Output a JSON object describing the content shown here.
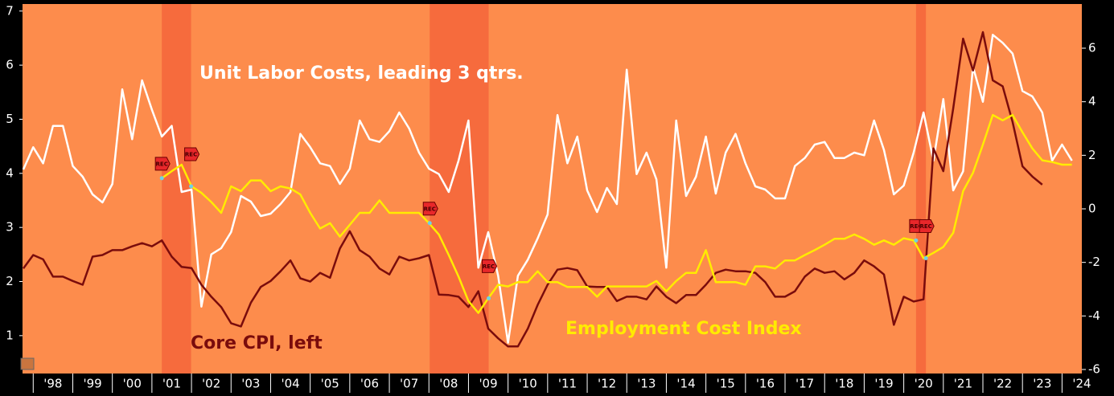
{
  "chart_data": {
    "type": "line",
    "x": [
      1997.75,
      1998,
      1998.25,
      1998.5,
      1998.75,
      1999,
      1999.25,
      1999.5,
      1999.75,
      2000,
      2000.25,
      2000.5,
      2000.75,
      2001,
      2001.25,
      2001.5,
      2001.75,
      2002,
      2002.25,
      2002.5,
      2002.75,
      2003,
      2003.25,
      2003.5,
      2003.75,
      2004,
      2004.25,
      2004.5,
      2004.75,
      2005,
      2005.25,
      2005.5,
      2005.75,
      2006,
      2006.25,
      2006.5,
      2006.75,
      2007,
      2007.25,
      2007.5,
      2007.75,
      2008,
      2008.25,
      2008.5,
      2008.75,
      2009,
      2009.25,
      2009.5,
      2009.75,
      2010,
      2010.25,
      2010.5,
      2010.75,
      2011,
      2011.25,
      2011.5,
      2011.75,
      2012,
      2012.25,
      2012.5,
      2012.75,
      2013,
      2013.25,
      2013.5,
      2013.75,
      2014,
      2014.25,
      2014.5,
      2014.75,
      2015,
      2015.25,
      2015.5,
      2015.75,
      2016,
      2016.25,
      2016.5,
      2016.75,
      2017,
      2017.25,
      2017.5,
      2017.75,
      2018,
      2018.25,
      2018.5,
      2018.75,
      2019,
      2019.25,
      2019.5,
      2019.75,
      2020,
      2020.25,
      2020.5,
      2020.75,
      2021,
      2021.25,
      2021.5,
      2021.75,
      2022,
      2022.25,
      2022.5,
      2022.75,
      2023,
      2023.25,
      2023.5,
      2023.75,
      2024,
      2024.25
    ],
    "series": [
      {
        "name": "Unit Labor Costs, leading 3 qtrs.",
        "color": "#ffffff",
        "axis": "y2",
        "values": [
          1.47,
          2.3,
          1.7,
          3.1,
          3.1,
          1.6,
          1.2,
          0.54,
          0.24,
          0.93,
          4.46,
          2.6,
          4.8,
          3.7,
          2.7,
          3.1,
          0.63,
          0.72,
          -3.65,
          -1.7,
          -1.47,
          -0.87,
          0.48,
          0.27,
          -0.27,
          -0.18,
          0.18,
          0.63,
          2.8,
          2.3,
          1.7,
          1.6,
          0.93,
          1.5,
          3.3,
          2.6,
          2.5,
          2.9,
          3.6,
          3.0,
          2.1,
          1.5,
          1.3,
          0.63,
          1.8,
          3.3,
          -2.2,
          -0.87,
          -2.5,
          -5.0,
          -2.5,
          -1.9,
          -1.1,
          -0.21,
          3.5,
          1.7,
          2.7,
          0.69,
          -0.12,
          0.78,
          0.18,
          5.2,
          1.3,
          2.1,
          1.1,
          -2.2,
          3.3,
          0.48,
          1.2,
          2.7,
          0.57,
          2.1,
          2.8,
          1.7,
          0.84,
          0.72,
          0.39,
          0.39,
          1.6,
          1.9,
          2.4,
          2.5,
          1.9,
          1.9,
          2.1,
          2.0,
          3.3,
          2.2,
          0.54,
          0.87,
          2.1,
          3.6,
          1.8,
          4.1,
          0.69,
          1.4,
          5.3,
          4.0,
          6.5,
          6.2,
          5.8,
          4.4,
          4.2,
          3.6,
          1.8,
          2.4,
          1.8
        ]
      },
      {
        "name": "Core CPI, left",
        "color": "#7a0c0c",
        "axis": "y",
        "values": [
          2.24,
          2.49,
          2.41,
          2.09,
          2.09,
          2.01,
          1.94,
          2.46,
          2.49,
          2.58,
          2.58,
          2.65,
          2.71,
          2.65,
          2.76,
          2.46,
          2.27,
          2.25,
          1.94,
          1.72,
          1.53,
          1.23,
          1.17,
          1.61,
          1.9,
          2.01,
          2.19,
          2.39,
          2.06,
          2.0,
          2.16,
          2.07,
          2.61,
          2.93,
          2.58,
          2.46,
          2.24,
          2.13,
          2.46,
          2.39,
          2.43,
          2.49,
          1.76,
          1.75,
          1.72,
          1.53,
          1.82,
          1.13,
          0.95,
          0.8,
          0.8,
          1.13,
          1.57,
          1.94,
          2.22,
          2.25,
          2.21,
          1.91,
          1.9,
          1.9,
          1.64,
          1.72,
          1.72,
          1.67,
          1.91,
          1.72,
          1.6,
          1.75,
          1.75,
          1.94,
          2.16,
          2.22,
          2.19,
          2.19,
          2.16,
          1.99,
          1.72,
          1.72,
          1.82,
          2.09,
          2.24,
          2.16,
          2.19,
          2.04,
          2.16,
          2.39,
          2.28,
          2.13,
          1.2,
          1.72,
          1.63,
          1.67,
          4.46,
          4.04,
          5.2,
          6.49,
          5.9,
          6.61,
          5.72,
          5.61,
          4.95,
          4.13,
          3.94,
          3.79,
          null,
          null,
          null
        ]
      },
      {
        "name": "Employment Cost Index",
        "color": "#ffeb00",
        "axis": "y",
        "values": [
          null,
          null,
          null,
          null,
          null,
          null,
          null,
          null,
          null,
          null,
          null,
          null,
          null,
          null,
          3.91,
          4.04,
          4.16,
          3.76,
          3.64,
          3.47,
          3.27,
          3.76,
          3.67,
          3.87,
          3.87,
          3.67,
          3.76,
          3.72,
          3.61,
          3.27,
          2.98,
          3.08,
          2.83,
          3.05,
          3.27,
          3.27,
          3.5,
          3.27,
          3.27,
          3.27,
          3.27,
          3.08,
          2.87,
          2.49,
          2.09,
          1.64,
          1.42,
          1.69,
          1.94,
          1.91,
          1.99,
          1.99,
          2.19,
          1.99,
          1.99,
          1.9,
          1.9,
          1.9,
          1.72,
          1.91,
          1.91,
          1.91,
          1.91,
          1.91,
          2.01,
          1.82,
          2.01,
          2.16,
          2.16,
          2.58,
          1.99,
          1.99,
          1.99,
          1.94,
          2.28,
          2.28,
          2.24,
          2.39,
          2.39,
          2.49,
          2.58,
          2.68,
          2.79,
          2.79,
          2.87,
          2.79,
          2.68,
          2.76,
          2.68,
          2.8,
          2.76,
          2.43,
          2.53,
          2.64,
          2.9,
          3.67,
          4.01,
          4.53,
          5.08,
          4.98,
          5.08,
          4.76,
          4.46,
          4.24,
          4.21,
          4.16,
          4.16
        ]
      }
    ],
    "xlim": [
      1997.73,
      2024.5
    ],
    "xticks": [
      {
        "value": 1998,
        "label": "'98"
      },
      {
        "value": 1999,
        "label": "'99"
      },
      {
        "value": 2000,
        "label": "'00"
      },
      {
        "value": 2001,
        "label": "'01"
      },
      {
        "value": 2002,
        "label": "'02"
      },
      {
        "value": 2003,
        "label": "'03"
      },
      {
        "value": 2004,
        "label": "'04"
      },
      {
        "value": 2005,
        "label": "'05"
      },
      {
        "value": 2006,
        "label": "'06"
      },
      {
        "value": 2007,
        "label": "'07"
      },
      {
        "value": 2008,
        "label": "'08"
      },
      {
        "value": 2009,
        "label": "'09"
      },
      {
        "value": 2010,
        "label": "'10"
      },
      {
        "value": 2011,
        "label": "'11"
      },
      {
        "value": 2012,
        "label": "'12"
      },
      {
        "value": 2013,
        "label": "'13"
      },
      {
        "value": 2014,
        "label": "'14"
      },
      {
        "value": 2015,
        "label": "'15"
      },
      {
        "value": 2016,
        "label": "'16"
      },
      {
        "value": 2017,
        "label": "'17"
      },
      {
        "value": 2018,
        "label": "'18"
      },
      {
        "value": 2019,
        "label": "'19"
      },
      {
        "value": 2020,
        "label": "'20"
      },
      {
        "value": 2021,
        "label": "'21"
      },
      {
        "value": 2022,
        "label": "'22"
      },
      {
        "value": 2023,
        "label": "'23"
      },
      {
        "value": 2024,
        "label": "'24"
      }
    ],
    "ylim": [
      0.3,
      7.13
    ],
    "yticks": [
      1,
      2,
      3,
      4,
      5,
      6,
      7
    ],
    "y2lim": [
      -6.15,
      7.65
    ],
    "y2ticks": [
      -6,
      -4,
      -2,
      0,
      2,
      4,
      6
    ],
    "background": "#fd8c4c",
    "recession_color": "#f66b3d",
    "rec_label": "REC",
    "recessions": [
      {
        "start": 2001.25,
        "end": 2001.99
      },
      {
        "start": 2008.02,
        "end": 2009.51
      },
      {
        "start": 2020.31,
        "end": 2020.56
      }
    ]
  }
}
